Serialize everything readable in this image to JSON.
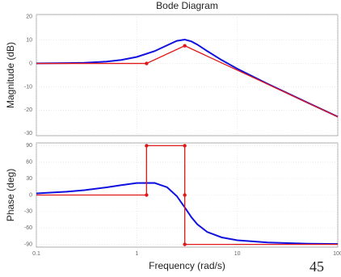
{
  "chart_data": [
    {
      "type": "line",
      "title": "Bode Diagram",
      "ylabel": "Magnitude (dB)",
      "log_x": true,
      "grid": true,
      "xlim": [
        0.1,
        100
      ],
      "xticks": [
        0.1,
        1,
        10,
        100
      ],
      "ylim": [
        -31,
        21
      ],
      "yticks": [
        20,
        10,
        0,
        -10,
        -20,
        -30
      ],
      "series": [
        {
          "color": "#1010e0",
          "x": [
            0.1,
            0.2,
            0.3,
            0.5,
            0.7,
            1,
            1.5,
            2,
            2.5,
            3,
            3.5,
            4,
            5,
            7,
            10,
            20,
            50,
            100
          ],
          "values": [
            0.03,
            0.14,
            0.3,
            0.81,
            1.5,
            2.8,
            5.28,
            7.78,
            9.68,
            10.24,
            9.45,
            8.1,
            5.36,
            1.44,
            -2.26,
            -8.72,
            -16.81,
            -22.85
          ]
        },
        {
          "color": "#e01818",
          "marker": "o",
          "x": [
            0.1,
            1.25,
            3,
            100
          ],
          "values": [
            0,
            0,
            7.6,
            -22.9
          ]
        }
      ]
    },
    {
      "type": "line",
      "ylabel": "Phase (deg)",
      "xlabel": "Frequency  (rad/s)",
      "log_x": true,
      "grid": true,
      "xlim": [
        0.1,
        100
      ],
      "xticks": [
        0.1,
        1,
        10,
        100
      ],
      "ylim": [
        -95,
        95
      ],
      "yticks": [
        90,
        60,
        30,
        0,
        -30,
        -60,
        -90
      ],
      "series": [
        {
          "color": "#1010e0",
          "x": [
            0.1,
            0.2,
            0.3,
            0.5,
            0.7,
            1,
            1.5,
            2,
            2.5,
            3,
            3.5,
            4,
            5,
            7,
            10,
            20,
            50,
            100
          ],
          "values": [
            3.04,
            6.0,
            8.9,
            14.0,
            18.1,
            21.96,
            22.1,
            14.2,
            -2.0,
            -22.6,
            -40.8,
            -53.4,
            -67.2,
            -77.3,
            -82.4,
            -86.6,
            -88.7,
            -89.34
          ]
        },
        {
          "color": "#e01818",
          "marker": "o",
          "x": [
            0.1,
            1.25,
            1.25,
            3,
            3,
            3,
            100
          ],
          "values": [
            0,
            0,
            90,
            90,
            0,
            -90,
            -90
          ]
        }
      ]
    }
  ],
  "page_number": "45"
}
